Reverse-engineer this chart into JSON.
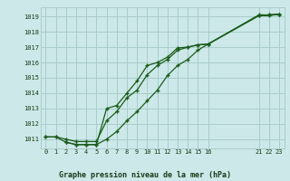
{
  "title": "Graphe pression niveau de la mer (hPa)",
  "bg_color": "#cce8e8",
  "grid_color": "#aacccc",
  "line_color": "#1a5c1a",
  "xlim": [
    -0.5,
    23.5
  ],
  "ylim": [
    1010.4,
    1019.6
  ],
  "xticks": [
    0,
    1,
    2,
    3,
    4,
    5,
    6,
    7,
    8,
    9,
    10,
    11,
    12,
    13,
    14,
    15,
    16,
    21,
    22,
    23
  ],
  "yticks": [
    1011,
    1012,
    1013,
    1014,
    1015,
    1016,
    1017,
    1018,
    1019
  ],
  "line1_x": [
    0,
    1,
    2,
    3,
    4,
    5,
    6,
    7,
    8,
    9,
    10,
    11,
    12,
    13,
    14,
    15,
    16,
    21,
    22,
    23
  ],
  "line1_y": [
    1011.15,
    1011.15,
    1011.0,
    1010.85,
    1010.85,
    1010.85,
    1012.2,
    1012.8,
    1013.7,
    1014.2,
    1015.2,
    1015.8,
    1016.2,
    1016.8,
    1017.0,
    1017.15,
    1017.2,
    1019.1,
    1019.1,
    1019.15
  ],
  "line2_x": [
    2,
    3,
    4,
    5,
    6,
    7,
    8,
    9,
    10,
    11,
    12,
    13,
    14,
    15,
    16,
    21,
    22,
    23
  ],
  "line2_y": [
    1010.8,
    1010.65,
    1010.65,
    1010.65,
    1013.0,
    1013.2,
    1014.0,
    1014.8,
    1015.8,
    1016.0,
    1016.35,
    1016.95,
    1017.0,
    1017.15,
    1017.2,
    1019.05,
    1019.05,
    1019.15
  ],
  "line3_x": [
    0,
    1,
    2,
    3,
    4,
    5,
    6,
    7,
    8,
    9,
    10,
    11,
    12,
    13,
    14,
    15,
    16,
    21,
    22,
    23
  ],
  "line3_y": [
    1011.15,
    1011.15,
    1010.8,
    1010.65,
    1010.65,
    1010.65,
    1011.0,
    1011.5,
    1012.2,
    1012.8,
    1013.5,
    1014.2,
    1015.15,
    1015.8,
    1016.2,
    1016.8,
    1017.2,
    1019.05,
    1019.1,
    1019.15
  ],
  "xlabel_ticks": [
    "0",
    "1",
    "2",
    "3",
    "4",
    "5",
    "6",
    "7",
    "8",
    "9",
    "10",
    "11",
    "12",
    "13",
    "14",
    "15",
    "16",
    "21",
    "22",
    "23"
  ]
}
